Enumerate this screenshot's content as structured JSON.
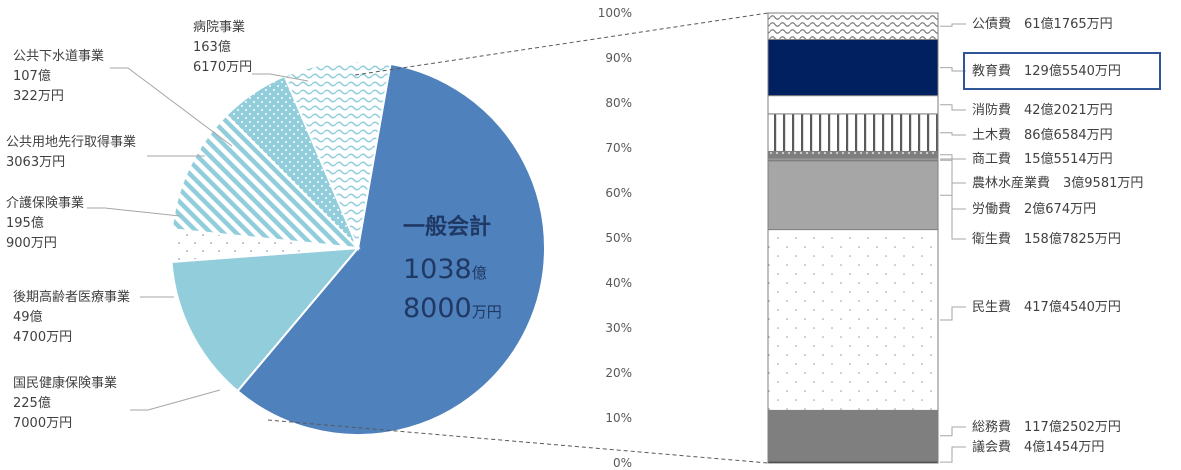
{
  "chart_data": [
    {
      "type": "pie",
      "center_label": {
        "title": "一般会計",
        "amount_oku": "1038",
        "oku_unit": "億",
        "amount_man": "8000",
        "man_unit": "万円"
      },
      "slices": [
        {
          "name": "一般会計",
          "value": 1038.8,
          "label_lines": [],
          "color": "#4f81bd",
          "pattern": "solid"
        },
        {
          "name": "国民健康保険事業",
          "value": 225.7,
          "label_lines": [
            "国民健康保険事業",
            "225億",
            "7000万円"
          ],
          "color": "#92cddc",
          "pattern": "solid"
        },
        {
          "name": "後期高齢者医療事業",
          "value": 49.47,
          "label_lines": [
            "後期高齢者医療事業",
            "49億",
            "4700万円"
          ],
          "color": "#92cddc",
          "pattern": "sparse-dots"
        },
        {
          "name": "介護保険事業",
          "value": 195.09,
          "label_lines": [
            "介護保険事業",
            "195億",
            "900万円"
          ],
          "color": "#92cddc",
          "pattern": "diagonal-stripes"
        },
        {
          "name": "公共用地先行取得事業",
          "value": 0.3063,
          "label_lines": [
            "公共用地先行取得事業",
            "3063万円"
          ],
          "color": "#92cddc",
          "pattern": "solid"
        },
        {
          "name": "公共下水道事業",
          "value": 107.0322,
          "label_lines": [
            "公共下水道事業",
            "107億",
            "322万円"
          ],
          "color": "#92cddc",
          "pattern": "dots"
        },
        {
          "name": "病院事業",
          "value": 163.617,
          "label_lines": [
            "病院事業",
            "163億",
            "6170万円"
          ],
          "color": "#92cddc",
          "pattern": "waves"
        }
      ]
    },
    {
      "type": "bar",
      "stacked": true,
      "ylim": [
        0,
        100
      ],
      "y_ticks": [
        "0%",
        "10%",
        "20%",
        "30%",
        "40%",
        "50%",
        "60%",
        "70%",
        "80%",
        "90%",
        "100%"
      ],
      "grid": false,
      "segments": [
        {
          "name": "議会費",
          "label": "議会費　4億1454万円",
          "amount": 4.1454,
          "color": "#1f1f1f",
          "pattern": "solid",
          "highlighted": false
        },
        {
          "name": "総務費",
          "label": "総務費　117億2502万円",
          "amount": 117.2502,
          "color": "#7f7f7f",
          "pattern": "solid",
          "highlighted": false
        },
        {
          "name": "民生費",
          "label": "民生費　417億4540万円",
          "amount": 417.454,
          "color": "#ffffff",
          "pattern": "sparse-dots",
          "highlighted": false
        },
        {
          "name": "衛生費",
          "label": "衛生費　158億7825万円",
          "amount": 158.7825,
          "color": "#a6a6a6",
          "pattern": "solid",
          "highlighted": false
        },
        {
          "name": "労働費",
          "label": "労働費　2億674万円",
          "amount": 2.0674,
          "color": "#d9d9d9",
          "pattern": "solid",
          "highlighted": false
        },
        {
          "name": "農林水産業費",
          "label": "農林水産業費　3億9581万円",
          "amount": 3.9581,
          "color": "#bfbfbf",
          "pattern": "solid",
          "highlighted": false
        },
        {
          "name": "商工費",
          "label": "商工費　15億5514万円",
          "amount": 15.5514,
          "color": "#7f7f7f",
          "pattern": "dots",
          "highlighted": false
        },
        {
          "name": "土木費",
          "label": "土木費　86億6584万円",
          "amount": 86.6584,
          "color": "#ffffff",
          "pattern": "vertical-stripes",
          "highlighted": false
        },
        {
          "name": "消防費",
          "label": "消防費　42億2021万円",
          "amount": 42.2021,
          "color": "#ffffff",
          "pattern": "solid",
          "highlighted": false
        },
        {
          "name": "教育費",
          "label": "教育費　129億5540万円",
          "amount": 129.554,
          "color": "#002060",
          "pattern": "solid",
          "highlighted": true
        },
        {
          "name": "公債費",
          "label": "公債費　61億1765万円",
          "amount": 61.1765,
          "color": "#ffffff",
          "pattern": "waves",
          "highlighted": false
        }
      ]
    }
  ]
}
